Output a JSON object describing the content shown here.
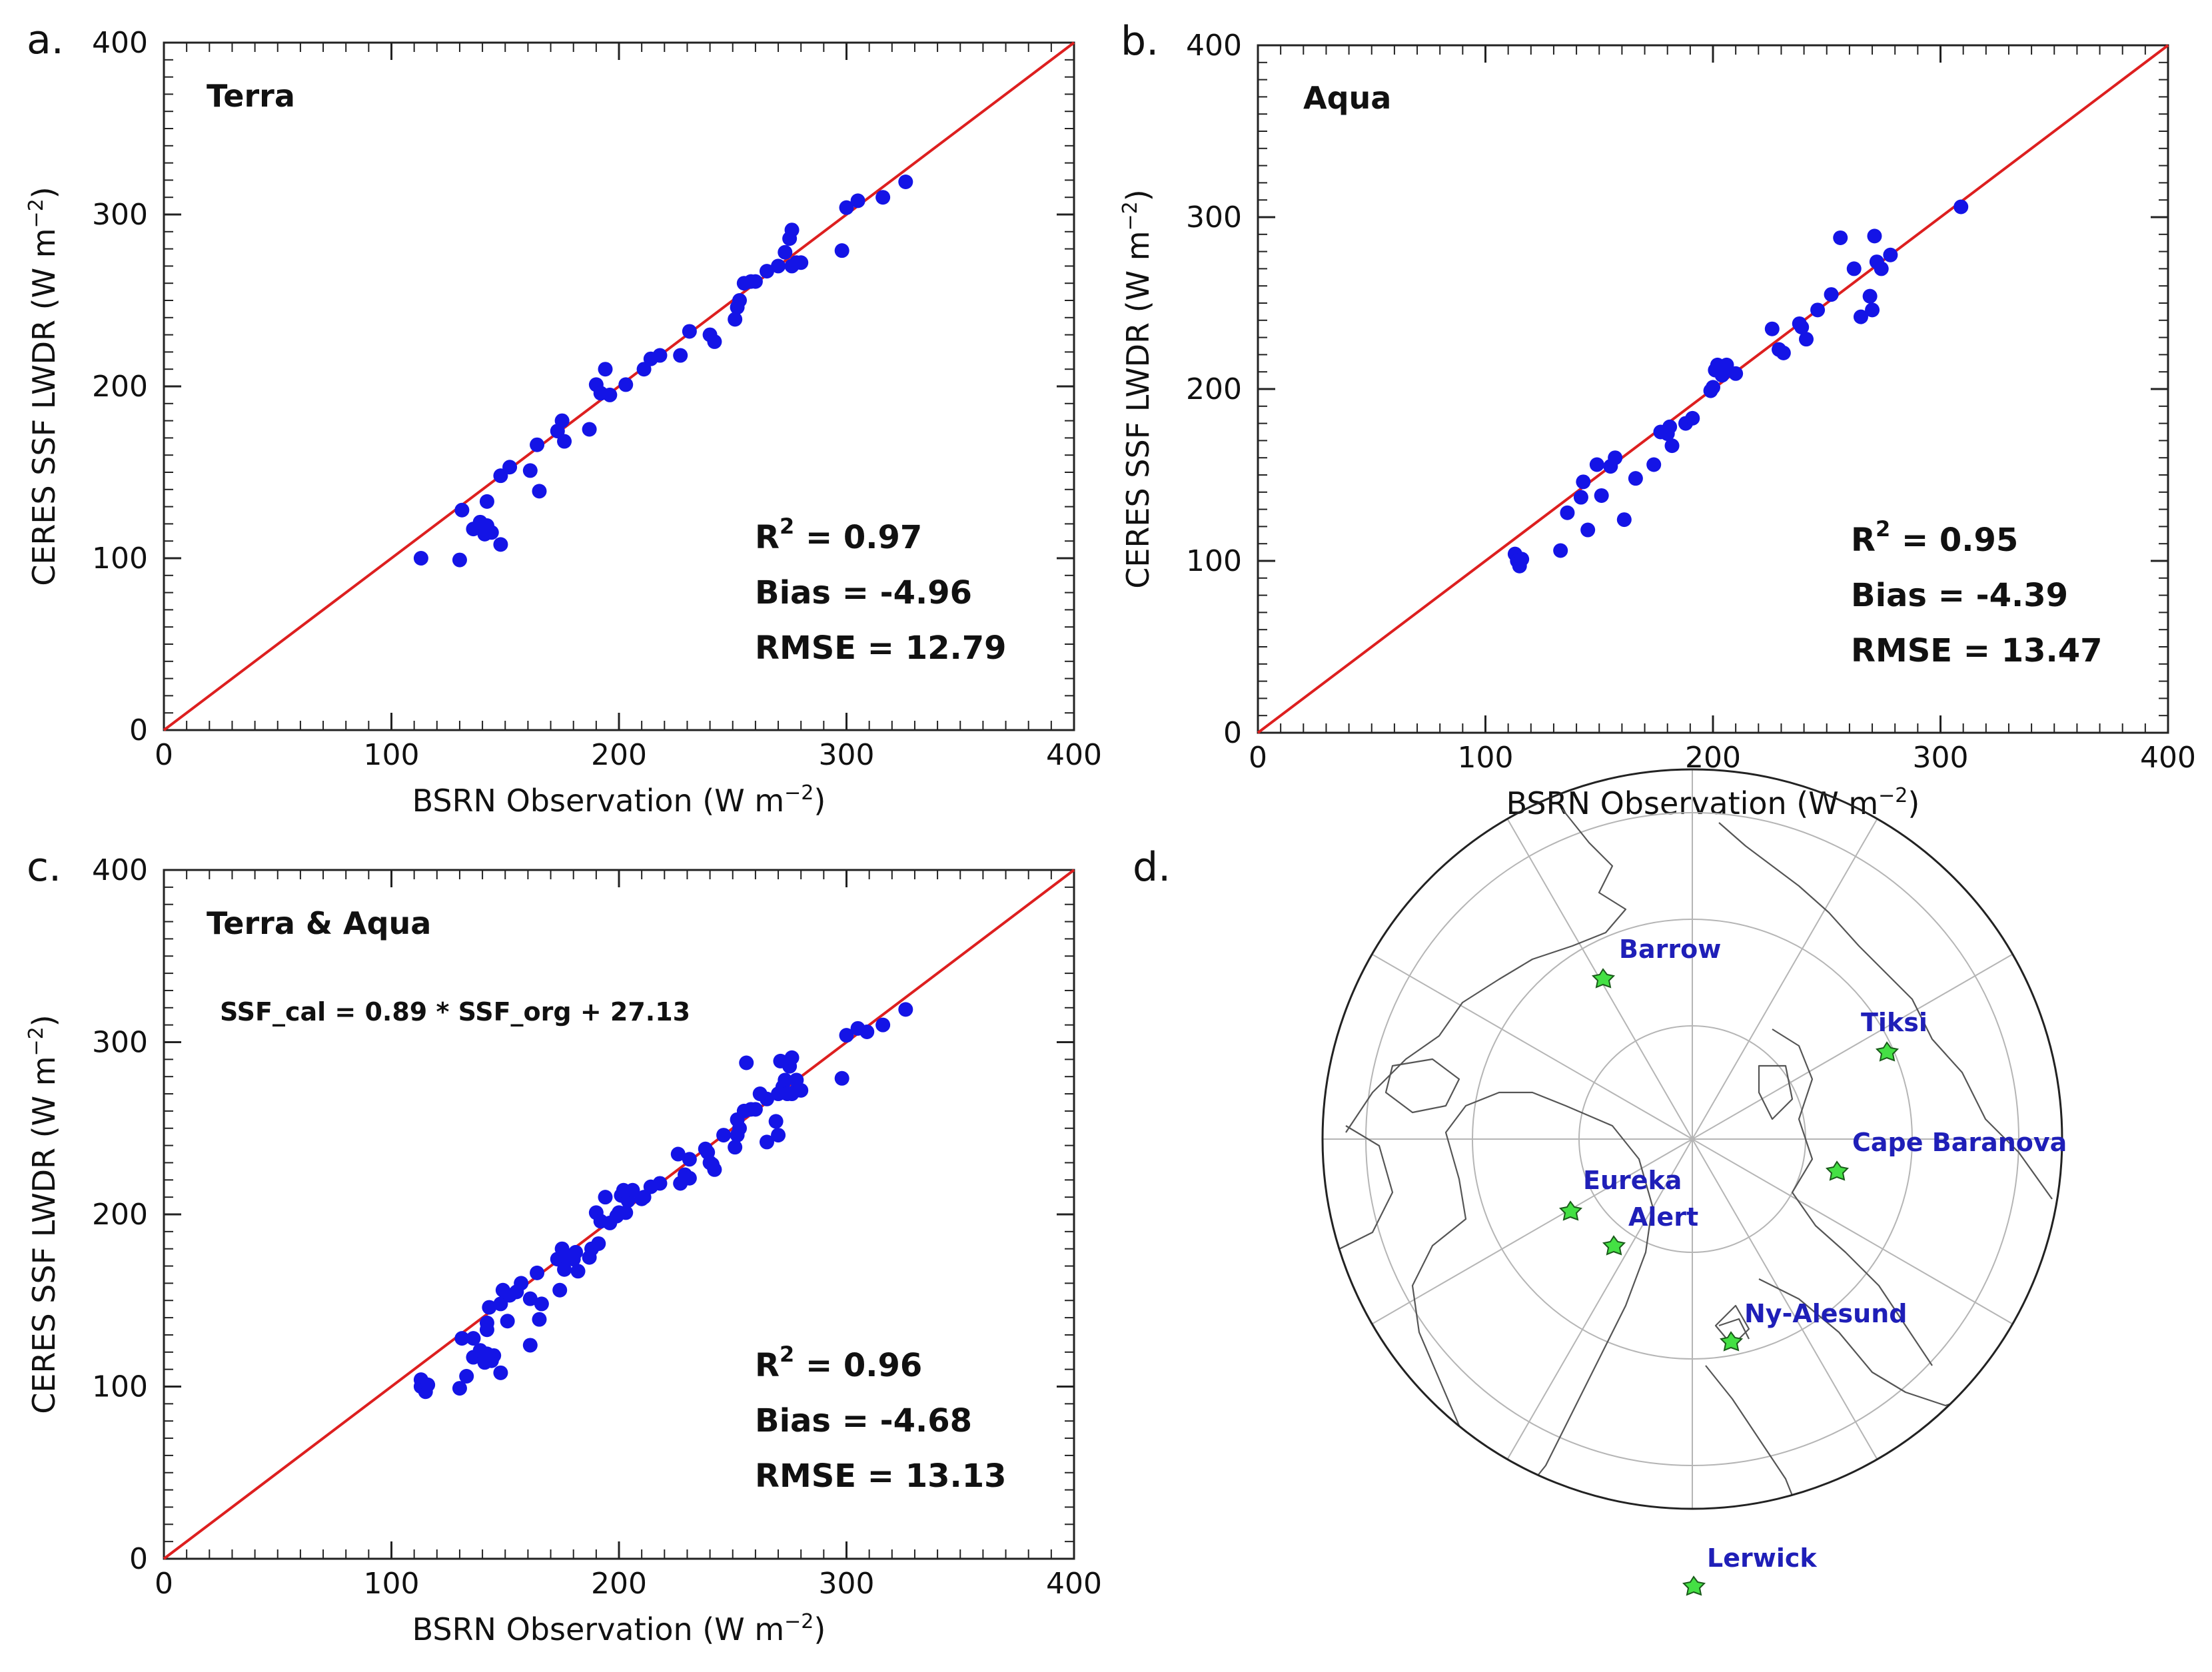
{
  "colors": {
    "points": "#1414e6",
    "fit_line": "#dd1f1f",
    "frame": "#222222",
    "station_marker": "#44e044",
    "station_label": "#1f1fb8",
    "coast": "#555555",
    "grid": "#b5b5b5"
  },
  "axes": {
    "xlabel": "BSRN Observation (W m",
    "ylabel": "CERES SSF LWDR (W m",
    "unit_exp": "−2",
    "ticks": [
      "0",
      "100",
      "200",
      "300",
      "400"
    ]
  },
  "panels": [
    {
      "letter": "a.",
      "title": "Terra",
      "stats": {
        "r2_label": "R",
        "r2_exp": "2",
        "r2_value": " = 0.97",
        "bias": "Bias = -4.96",
        "rmse": "RMSE = 12.79"
      }
    },
    {
      "letter": "b.",
      "title": "Aqua",
      "stats": {
        "r2_label": "R",
        "r2_exp": "2",
        "r2_value": " = 0.95",
        "bias": "Bias = -4.39",
        "rmse": "RMSE = 13.47"
      }
    },
    {
      "letter": "c.",
      "title": "Terra & Aqua",
      "equation": "SSF_cal = 0.89 * SSF_org + 27.13",
      "stats": {
        "r2_label": "R",
        "r2_exp": "2",
        "r2_value": " = 0.96",
        "bias": "Bias = -4.68",
        "rmse": "RMSE = 13.13"
      }
    }
  ],
  "map": {
    "letter": "d.",
    "stations": [
      {
        "name": "Barrow"
      },
      {
        "name": "Tiksi"
      },
      {
        "name": "Cape Baranova"
      },
      {
        "name": "Eureka"
      },
      {
        "name": "Alert"
      },
      {
        "name": "Ny-Alesund"
      },
      {
        "name": "Lerwick"
      }
    ]
  },
  "chart_data": [
    {
      "type": "scatter",
      "title": "Terra",
      "xlabel": "BSRN Observation (W m-2)",
      "ylabel": "CERES SSF LWDR (W m-2)",
      "xlim": [
        0,
        400
      ],
      "ylim": [
        0,
        400
      ],
      "reference_line": "1:1",
      "x": [
        113,
        130,
        131,
        136,
        139,
        141,
        142,
        142,
        144,
        148,
        148,
        152,
        161,
        164,
        165,
        173,
        175,
        176,
        187,
        190,
        192,
        194,
        196,
        203,
        211,
        214,
        218,
        227,
        231,
        240,
        242,
        251,
        252,
        253,
        255,
        258,
        260,
        265,
        270,
        273,
        275,
        276,
        278,
        276,
        280,
        298,
        300,
        305,
        316,
        326
      ],
      "y": [
        100,
        99,
        128,
        117,
        121,
        114,
        133,
        119,
        115,
        108,
        148,
        153,
        151,
        166,
        139,
        174,
        180,
        168,
        175,
        201,
        196,
        210,
        195,
        201,
        210,
        216,
        218,
        218,
        232,
        230,
        226,
        239,
        246,
        250,
        260,
        261,
        261,
        267,
        270,
        278,
        286,
        291,
        272,
        270,
        272,
        279,
        304,
        308,
        310,
        319
      ]
    },
    {
      "type": "scatter",
      "title": "Aqua",
      "xlabel": "BSRN Observation (W m-2)",
      "ylabel": "CERES SSF LWDR (W m-2)",
      "xlim": [
        0,
        400
      ],
      "ylim": [
        0,
        400
      ],
      "reference_line": "1:1",
      "x": [
        113,
        114,
        115,
        116,
        133,
        136,
        142,
        143,
        145,
        149,
        151,
        155,
        157,
        161,
        166,
        174,
        177,
        180,
        181,
        182,
        188,
        191,
        199,
        200,
        201,
        202,
        204,
        206,
        210,
        226,
        229,
        231,
        238,
        239,
        241,
        246,
        252,
        256,
        262,
        265,
        269,
        270,
        271,
        272,
        274,
        278,
        309
      ],
      "y": [
        104,
        100,
        97,
        101,
        106,
        128,
        137,
        146,
        118,
        156,
        138,
        155,
        160,
        124,
        148,
        156,
        175,
        174,
        178,
        167,
        180,
        183,
        199,
        201,
        211,
        214,
        208,
        214,
        209,
        235,
        223,
        221,
        238,
        236,
        229,
        246,
        255,
        288,
        270,
        242,
        254,
        246,
        289,
        274,
        270,
        278,
        306
      ]
    },
    {
      "type": "scatter",
      "title": "Terra & Aqua",
      "annotation": "SSF_cal = 0.89 * SSF_org + 27.13",
      "xlabel": "BSRN Observation (W m-2)",
      "ylabel": "CERES SSF LWDR (W m-2)",
      "xlim": [
        0,
        400
      ],
      "ylim": [
        0,
        400
      ],
      "reference_line": "1:1",
      "x": [
        113,
        130,
        131,
        136,
        139,
        141,
        142,
        142,
        144,
        148,
        148,
        152,
        161,
        164,
        165,
        173,
        175,
        176,
        187,
        190,
        192,
        194,
        196,
        203,
        211,
        214,
        218,
        227,
        231,
        240,
        242,
        251,
        252,
        253,
        255,
        258,
        260,
        265,
        270,
        273,
        275,
        276,
        278,
        276,
        280,
        298,
        300,
        305,
        316,
        326,
        113,
        114,
        115,
        116,
        133,
        136,
        142,
        143,
        145,
        149,
        151,
        155,
        157,
        161,
        166,
        174,
        177,
        180,
        181,
        182,
        188,
        191,
        199,
        200,
        201,
        202,
        204,
        206,
        210,
        226,
        229,
        231,
        238,
        239,
        241,
        246,
        252,
        256,
        262,
        265,
        269,
        270,
        271,
        272,
        274,
        278,
        309
      ],
      "y": [
        100,
        99,
        128,
        117,
        121,
        114,
        133,
        119,
        115,
        108,
        148,
        153,
        151,
        166,
        139,
        174,
        180,
        168,
        175,
        201,
        196,
        210,
        195,
        201,
        210,
        216,
        218,
        218,
        232,
        230,
        226,
        239,
        246,
        250,
        260,
        261,
        261,
        267,
        270,
        278,
        286,
        291,
        272,
        270,
        272,
        279,
        304,
        308,
        310,
        319,
        104,
        100,
        97,
        101,
        106,
        128,
        137,
        146,
        118,
        156,
        138,
        155,
        160,
        124,
        148,
        156,
        175,
        174,
        178,
        167,
        180,
        183,
        199,
        201,
        211,
        214,
        208,
        214,
        209,
        235,
        223,
        221,
        238,
        236,
        229,
        246,
        255,
        288,
        270,
        242,
        254,
        246,
        289,
        274,
        270,
        278,
        306
      ]
    }
  ]
}
